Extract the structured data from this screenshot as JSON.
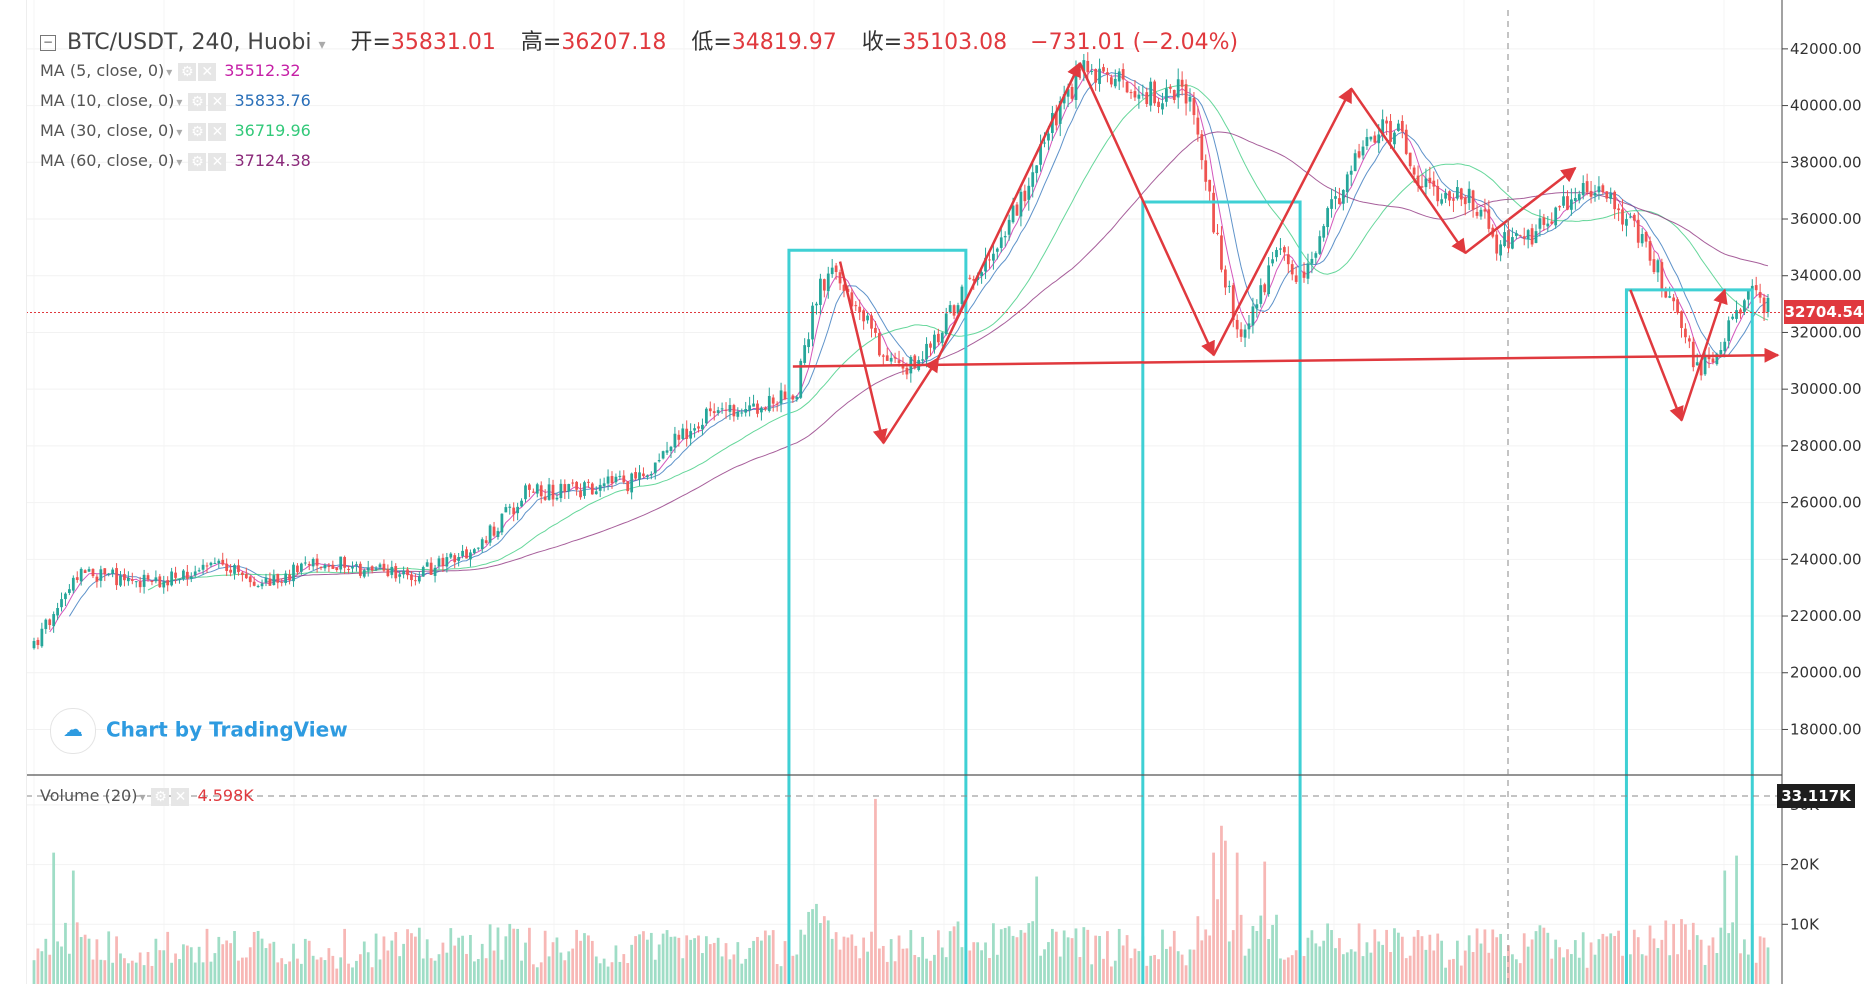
{
  "header": {
    "symbol": "BTC/USDT, 240, Huobi",
    "open_label": "开=",
    "open": "35831.01",
    "high_label": "高=",
    "high": "36207.18",
    "low_label": "低=",
    "low": "34819.97",
    "close_label": "收=",
    "close": "35103.08",
    "change": "−731.01 (−2.04%)"
  },
  "ma_legend": [
    {
      "label": "MA (5, close, 0)",
      "value": "35512.32",
      "color": "#c51fa6"
    },
    {
      "label": "MA (10, close, 0)",
      "value": "35833.76",
      "color": "#2a6fb8"
    },
    {
      "label": "MA (30, close, 0)",
      "value": "36719.96",
      "color": "#33c97a"
    },
    {
      "label": "MA (60, close, 0)",
      "value": "37124.38",
      "color": "#8a2a7a"
    }
  ],
  "volume_legend": {
    "label": "Volume (20)",
    "value": "4.598K"
  },
  "branding": "Chart by TradingView",
  "colors": {
    "up": "#26a69a",
    "down": "#ef5350",
    "box": "#3fd0d4",
    "arrow": "#e0393e"
  },
  "chart_data": {
    "type": "candlestick",
    "price_axis": {
      "ticks": [
        18000,
        20000,
        22000,
        24000,
        26000,
        28000,
        30000,
        32000,
        34000,
        36000,
        38000,
        40000,
        42000
      ],
      "ylim": [
        16500,
        43300
      ]
    },
    "volume_axis": {
      "ticks": [
        "10K",
        "20K",
        "30K"
      ],
      "tick_values": [
        10000,
        20000,
        30000
      ],
      "ylim": [
        0,
        34500
      ]
    },
    "last_price": "32704.54",
    "volume_marker": "33.117K",
    "path_waypoints": [
      [
        0,
        21000
      ],
      [
        12,
        23500
      ],
      [
        30,
        23200
      ],
      [
        45,
        23800
      ],
      [
        58,
        23200
      ],
      [
        75,
        23900
      ],
      [
        95,
        23400
      ],
      [
        110,
        24100
      ],
      [
        125,
        26300
      ],
      [
        140,
        26500
      ],
      [
        155,
        26800
      ],
      [
        168,
        28900
      ],
      [
        182,
        29300
      ],
      [
        194,
        30000
      ],
      [
        199,
        33300
      ],
      [
        203,
        34400
      ],
      [
        215,
        31500
      ],
      [
        222,
        30800
      ],
      [
        228,
        31500
      ],
      [
        238,
        33900
      ],
      [
        250,
        36300
      ],
      [
        262,
        40300
      ],
      [
        267,
        41200
      ],
      [
        280,
        40600
      ],
      [
        287,
        40200
      ],
      [
        292,
        41000
      ],
      [
        297,
        38500
      ],
      [
        301,
        35100
      ],
      [
        307,
        31500
      ],
      [
        316,
        34900
      ],
      [
        322,
        33800
      ],
      [
        334,
        37500
      ],
      [
        342,
        39400
      ],
      [
        348,
        38800
      ],
      [
        354,
        37000
      ],
      [
        366,
        36700
      ],
      [
        372,
        35100
      ],
      [
        380,
        35300
      ],
      [
        392,
        36800
      ],
      [
        400,
        37000
      ],
      [
        410,
        35000
      ],
      [
        418,
        32800
      ],
      [
        423,
        30700
      ],
      [
        428,
        31200
      ],
      [
        436,
        33600
      ],
      [
        440,
        33000
      ]
    ],
    "vol_spikes": [
      [
        5,
        22000
      ],
      [
        10,
        19000
      ],
      [
        214,
        31000
      ],
      [
        255,
        18000
      ],
      [
        300,
        22000
      ],
      [
        302,
        26500
      ],
      [
        303,
        24000
      ],
      [
        306,
        22000
      ],
      [
        313,
        20500
      ],
      [
        430,
        19000
      ],
      [
        433,
        21500
      ]
    ],
    "ma_periods": [
      5,
      10,
      30,
      60
    ],
    "boxes": [
      {
        "x1": 192,
        "x2": 237,
        "y_top": 34900
      },
      {
        "x1": 282,
        "x2": 322,
        "y_top": 36600
      },
      {
        "x1": 405,
        "x2": 437,
        "y_top": 33500
      }
    ],
    "pattern_arrows": [
      [
        [
          205,
          34500
        ],
        [
          216,
          28100
        ]
      ],
      [
        [
          216,
          28100
        ],
        [
          230,
          31100
        ]
      ],
      [
        [
          230,
          31100
        ],
        [
          266,
          41500
        ]
      ],
      [
        [
          266,
          41500
        ],
        [
          300,
          31200
        ]
      ],
      [
        [
          300,
          31200
        ],
        [
          335,
          40600
        ]
      ],
      [
        [
          335,
          40600
        ],
        [
          364,
          34800
        ]
      ],
      [
        [
          364,
          34800
        ],
        [
          392,
          37800
        ]
      ],
      [
        [
          406,
          33500
        ],
        [
          419,
          28900
        ]
      ],
      [
        [
          419,
          28900
        ],
        [
          430,
          33500
        ]
      ]
    ],
    "horizontal_support": [
      [
        193,
        30800
      ],
      [
        441,
        31200
      ]
    ],
    "n_candles": 442
  }
}
